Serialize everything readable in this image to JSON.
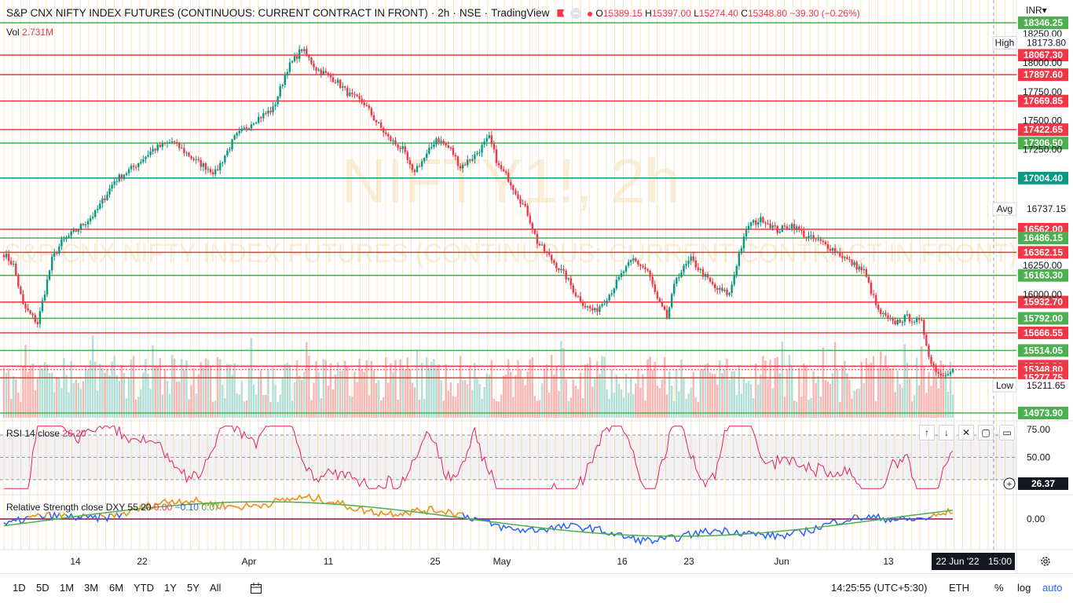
{
  "header": {
    "title": "S&P CNX NIFTY INDEX FUTURES (CONTINUOUS: CURRENT CONTRACT IN FRONT)",
    "interval": "2h",
    "exchange": "NSE",
    "source": "TradingView",
    "ohlc": {
      "o_label": "O",
      "o": "15389.15",
      "h_label": "H",
      "h": "15397.00",
      "l_label": "L",
      "l": "15274.40",
      "c_label": "C",
      "c": "15348.80",
      "change": "−39.30 (−0.26%)"
    }
  },
  "watermark": {
    "symbol": "NIFTY1!, 2h",
    "name": "S&P CNX NIFTY INDEX FUTURES (CONTINUOUS: CURRENT CONTRACT IN FRONT)"
  },
  "volume_label": {
    "name": "Vol",
    "value": "2.731M"
  },
  "currency": "INR",
  "chart_data": [
    {
      "type": "candlestick",
      "ylim": [
        14973.9,
        18346.25
      ],
      "price_axis_ticks": [
        "18250.00",
        "18000.00",
        "17750.00",
        "17500.00",
        "17250.00",
        "16250.00",
        "16000.00"
      ],
      "time_axis_labels": [
        "14",
        "22",
        "Apr",
        "11",
        "25",
        "May",
        "16",
        "23",
        "Jun",
        "13"
      ],
      "last_date_label": "22 Jun '22",
      "last_time_label": "15:00",
      "stats": {
        "high_label": "High",
        "high": "18173.80",
        "avg_label": "Avg",
        "avg": "16737.15",
        "low_label": "Low",
        "low": "15211.65"
      },
      "levels": [
        {
          "value": "18346.25",
          "color": "#4caf50"
        },
        {
          "value": "18067.30",
          "color": "#f23645"
        },
        {
          "value": "17897.60",
          "color": "#f23645"
        },
        {
          "value": "17669.85",
          "color": "#f23645"
        },
        {
          "value": "17422.65",
          "color": "#f23645"
        },
        {
          "value": "17306.50",
          "color": "#4caf50"
        },
        {
          "value": "17004.40",
          "color": "#089981"
        },
        {
          "value": "16562.00",
          "color": "#f23645"
        },
        {
          "value": "16486.15",
          "color": "#4caf50"
        },
        {
          "value": "16362.15",
          "color": "#f23645"
        },
        {
          "value": "16163.30",
          "color": "#4caf50"
        },
        {
          "value": "15932.70",
          "color": "#f23645"
        },
        {
          "value": "15792.00",
          "color": "#4caf50"
        },
        {
          "value": "15666.55",
          "color": "#f23645"
        },
        {
          "value": "15514.05",
          "color": "#4caf50"
        },
        {
          "value": "15378.80",
          "color": "#f23645"
        },
        {
          "value": "15348.80",
          "color": "#f23645"
        },
        {
          "value": "15277.75",
          "color": "#f23645"
        },
        {
          "value": "14973.90",
          "color": "#4caf50"
        }
      ],
      "anchors": [
        [
          0,
          16350
        ],
        [
          4,
          16250
        ],
        [
          8,
          15900
        ],
        [
          14,
          15750
        ],
        [
          20,
          16300
        ],
        [
          24,
          16450
        ],
        [
          30,
          16550
        ],
        [
          38,
          16700
        ],
        [
          46,
          16980
        ],
        [
          54,
          17100
        ],
        [
          62,
          17250
        ],
        [
          70,
          17320
        ],
        [
          80,
          17150
        ],
        [
          88,
          17050
        ],
        [
          96,
          17350
        ],
        [
          104,
          17500
        ],
        [
          112,
          17600
        ],
        [
          118,
          17950
        ],
        [
          124,
          18120
        ],
        [
          130,
          17950
        ],
        [
          138,
          17850
        ],
        [
          144,
          17720
        ],
        [
          150,
          17650
        ],
        [
          154,
          17520
        ],
        [
          160,
          17350
        ],
        [
          166,
          17250
        ],
        [
          170,
          17050
        ],
        [
          176,
          17200
        ],
        [
          180,
          17350
        ],
        [
          186,
          17250
        ],
        [
          190,
          17100
        ],
        [
          196,
          17200
        ],
        [
          202,
          17350
        ],
        [
          206,
          17100
        ],
        [
          210,
          17000
        ],
        [
          214,
          16850
        ],
        [
          218,
          16700
        ],
        [
          222,
          16450
        ],
        [
          228,
          16300
        ],
        [
          234,
          16150
        ],
        [
          238,
          16000
        ],
        [
          242,
          15900
        ],
        [
          246,
          15850
        ],
        [
          252,
          16000
        ],
        [
          258,
          16200
        ],
        [
          262,
          16300
        ],
        [
          268,
          16200
        ],
        [
          272,
          15950
        ],
        [
          276,
          15800
        ],
        [
          280,
          16150
        ],
        [
          286,
          16300
        ],
        [
          290,
          16200
        ],
        [
          296,
          16050
        ],
        [
          302,
          16000
        ],
        [
          306,
          16350
        ],
        [
          310,
          16600
        ],
        [
          316,
          16650
        ],
        [
          322,
          16550
        ],
        [
          328,
          16600
        ],
        [
          334,
          16500
        ],
        [
          340,
          16450
        ],
        [
          346,
          16380
        ],
        [
          352,
          16280
        ],
        [
          358,
          16200
        ],
        [
          364,
          15850
        ],
        [
          370,
          15750
        ],
        [
          376,
          15800
        ],
        [
          382,
          15750
        ],
        [
          386,
          15400
        ],
        [
          390,
          15300
        ],
        [
          394,
          15350
        ]
      ]
    },
    {
      "type": "line",
      "name": "RSI 14 close",
      "value": "26.20",
      "last_value": "26.37",
      "ylim": [
        20,
        80
      ],
      "ticks": [
        "75.00",
        "50.00"
      ],
      "upper": 70,
      "lower": 30
    },
    {
      "type": "line",
      "name": "Relative Strength close DXY 55 20",
      "values_text": [
        "0.00",
        "−0.10",
        "0.07"
      ],
      "tick": "0.00"
    }
  ],
  "bottom_bar": {
    "timeframes": [
      "1D",
      "5D",
      "1M",
      "3M",
      "6M",
      "YTD",
      "1Y",
      "5Y",
      "All"
    ],
    "clock": "14:25:55 (UTC+5:30)",
    "session": "ETH",
    "pct": "%",
    "log": "log",
    "auto": "auto"
  },
  "pane_buttons": [
    "↑",
    "↓",
    "✕",
    "▢"
  ]
}
